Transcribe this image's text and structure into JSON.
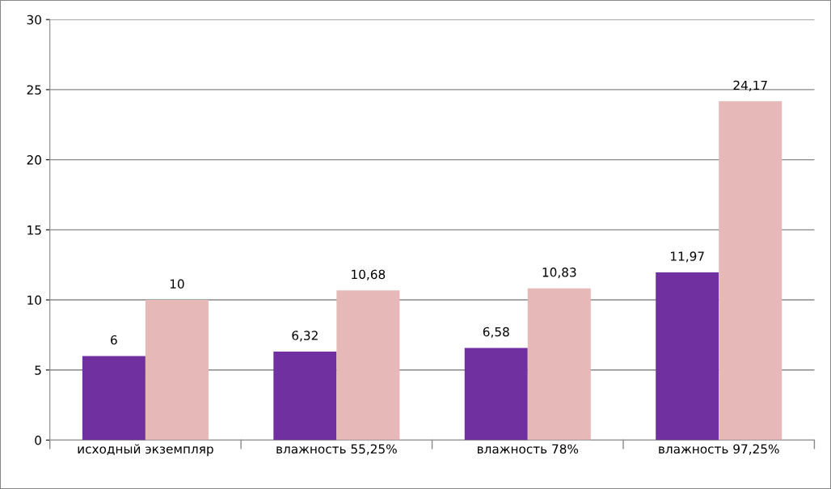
{
  "chart_data": {
    "type": "bar",
    "categories": [
      "исходный экземпляр",
      "влажность 55,25%",
      "влажность 78%",
      "влажность 97,25%"
    ],
    "series": [
      {
        "color": "#7030a0",
        "values": [
          6,
          6.32,
          6.58,
          11.97
        ],
        "value_labels": [
          "6",
          "6,32",
          "6,58",
          "11,97"
        ]
      },
      {
        "color": "#e6b9b8",
        "values": [
          10,
          10.68,
          10.83,
          24.17
        ],
        "value_labels": [
          "10",
          "10,68",
          "10,83",
          "24,17"
        ]
      }
    ],
    "ylim": [
      0,
      30
    ],
    "yticks": [
      0,
      5,
      10,
      15,
      20,
      25,
      30
    ],
    "grid": "y"
  }
}
